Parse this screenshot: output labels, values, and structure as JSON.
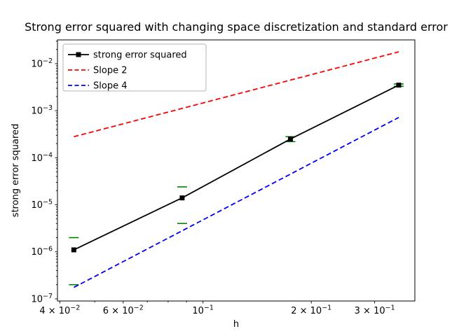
{
  "figure": {
    "background": "#ffffff"
  },
  "chart_data": {
    "type": "line",
    "title": "Strong error squared with changing space discretization and standard error",
    "xlabel": "h",
    "ylabel": "strong error squared",
    "xscale": "log",
    "yscale": "log",
    "xlim": [
      0.0394,
      0.388
    ],
    "ylim": [
      9e-08,
      0.032
    ],
    "grid": false,
    "legend_position": "upper left",
    "series": [
      {
        "name": "strong error squared",
        "kind": "line+markers",
        "color": "#000000",
        "linestyle": "solid",
        "marker": "square",
        "x": [
          0.04375,
          0.0875,
          0.175,
          0.35
        ],
        "y": [
          1.1e-06,
          1.4e-05,
          0.00025,
          0.0035
        ],
        "yerr": [
          9e-07,
          1e-05,
          3e-05,
          0.0002
        ],
        "error_color": "#008000"
      },
      {
        "name": "Slope 2",
        "kind": "line",
        "color": "#ff0000",
        "linestyle": "dashed",
        "x": [
          0.04375,
          0.35
        ],
        "y": [
          0.00028,
          0.0179
        ]
      },
      {
        "name": "Slope 4",
        "kind": "line",
        "color": "#0000ff",
        "linestyle": "dashed",
        "x": [
          0.04375,
          0.35
        ],
        "y": [
          1.75e-07,
          0.000717
        ]
      }
    ],
    "xticks": [
      {
        "value": 0.04,
        "prefix": "4 × ",
        "exp": "−2"
      },
      {
        "value": 0.06,
        "prefix": "6 × ",
        "exp": "−2"
      },
      {
        "value": 0.1,
        "prefix": "",
        "exp": "−1"
      },
      {
        "value": 0.2,
        "prefix": "2 × ",
        "exp": "−1"
      },
      {
        "value": 0.3,
        "prefix": "3 × ",
        "exp": "−1"
      }
    ],
    "yticks": [
      {
        "value": 0.01,
        "exp": "−2"
      },
      {
        "value": 0.001,
        "exp": "−3"
      },
      {
        "value": 0.0001,
        "exp": "−4"
      },
      {
        "value": 1e-05,
        "exp": "−5"
      },
      {
        "value": 1e-06,
        "exp": "−6"
      },
      {
        "value": 1e-07,
        "exp": "−7"
      }
    ]
  }
}
